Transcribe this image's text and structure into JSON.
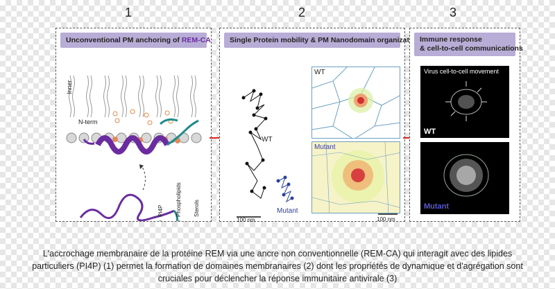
{
  "steps": {
    "one": "1",
    "two": "2",
    "three": "3"
  },
  "panel1": {
    "title_prefix": "Unconventional PM anchoring of ",
    "title_highlight": "REM-CA",
    "inner_label": "Inner",
    "nterm_label": "N-term",
    "legend": {
      "pi4p": "PI4P",
      "phospholipids": "Phospholipids",
      "sterols": "Sterols"
    }
  },
  "panel2": {
    "title": "Single Protein mobility & PM Nanodomain organization",
    "wt_label": "WT",
    "mutant_label": "Mutant",
    "map_wt_label": "WT",
    "map_mutant_label": "Mutant",
    "scale_left": "100 nm",
    "scale_right": "100 nm"
  },
  "panel3": {
    "title_line1": "Immune response",
    "title_line2": "& cell-to-cell communications",
    "virus_label": "Virus cell-to-cell movement",
    "wt_label": "WT",
    "mutant_label": "Mutant"
  },
  "caption": {
    "line1": "L'accrochage membranaire de la protéine REM via une ancre non conventionnelle (REM-CA) qui interagit avec des lipides",
    "line2": "particuliers (PI4P) (1) permet la formation de domaines membranaires (2) dont les propriétés de dynamique et d'agrégation sont",
    "line3": "cruciales pour déclencher la réponse immunitaire antivirale (3)"
  },
  "colors": {
    "header": "#b8add6",
    "helix": "#6a2ca0",
    "teal": "#1f8a8a",
    "wt_track": "#111111",
    "mutant_track": "#2a3fa0",
    "arrow": "#e02020",
    "mutant_text": "#3a3aa0"
  }
}
